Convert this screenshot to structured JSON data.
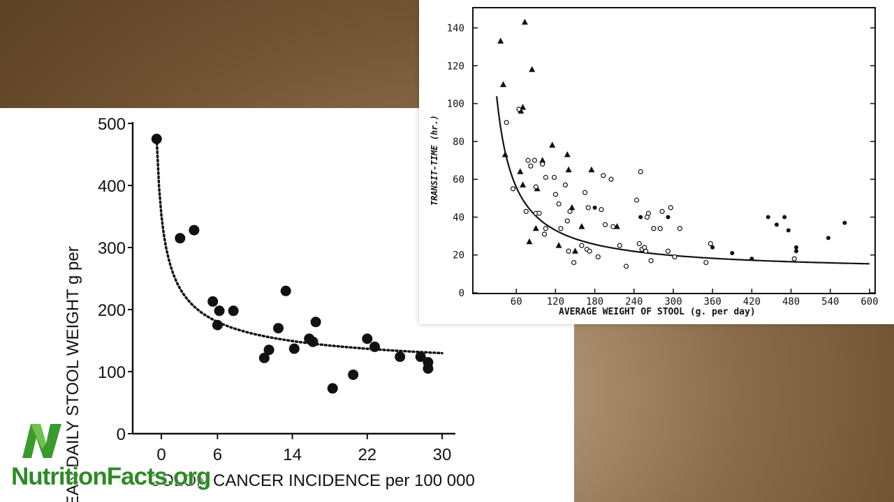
{
  "chart_data": [
    {
      "type": "scatter",
      "title": "",
      "xlabel": "COLON CANCER INCIDENCE per 100 000",
      "ylabel": "MEAN DAILY STOOL WEIGHT g per",
      "xlim": [
        -3,
        31
      ],
      "ylim": [
        0,
        500
      ],
      "xticks": [
        "0",
        "6",
        "14",
        "22",
        "30"
      ],
      "yticks": [
        "0",
        "100",
        "200",
        "300",
        "400",
        "500"
      ],
      "xtick_values": [
        0,
        6,
        14,
        22,
        30
      ],
      "ytick_values": [
        0,
        100,
        200,
        300,
        400,
        500
      ],
      "trend": "dotted decreasing curve",
      "points": [
        {
          "x": -0.5,
          "y": 475
        },
        {
          "x": 2.0,
          "y": 315
        },
        {
          "x": 3.5,
          "y": 328
        },
        {
          "x": 5.5,
          "y": 213
        },
        {
          "x": 6.0,
          "y": 175
        },
        {
          "x": 6.2,
          "y": 198
        },
        {
          "x": 7.7,
          "y": 198
        },
        {
          "x": 11.0,
          "y": 122
        },
        {
          "x": 11.5,
          "y": 135
        },
        {
          "x": 12.5,
          "y": 170
        },
        {
          "x": 13.3,
          "y": 230
        },
        {
          "x": 14.2,
          "y": 137
        },
        {
          "x": 15.8,
          "y": 153
        },
        {
          "x": 16.2,
          "y": 148
        },
        {
          "x": 16.5,
          "y": 180
        },
        {
          "x": 18.3,
          "y": 73
        },
        {
          "x": 20.5,
          "y": 95
        },
        {
          "x": 22.0,
          "y": 153
        },
        {
          "x": 22.8,
          "y": 140
        },
        {
          "x": 25.5,
          "y": 124
        },
        {
          "x": 27.7,
          "y": 124
        },
        {
          "x": 28.5,
          "y": 115
        },
        {
          "x": 28.5,
          "y": 105
        }
      ]
    },
    {
      "type": "scatter",
      "title": "",
      "xlabel": "AVERAGE WEIGHT OF STOOL (g. per day)",
      "ylabel": "TRANSIT-TIME (hr.)",
      "xlim": [
        0,
        600
      ],
      "ylim": [
        0,
        145
      ],
      "xticks": [
        "60",
        "120",
        "180",
        "240",
        "300",
        "360",
        "420",
        "480",
        "540",
        "600"
      ],
      "yticks": [
        "0",
        "20",
        "40",
        "60",
        "80",
        "100",
        "120",
        "140"
      ],
      "xtick_values": [
        60,
        120,
        180,
        240,
        300,
        360,
        420,
        480,
        540,
        600
      ],
      "ytick_values": [
        0,
        20,
        40,
        60,
        80,
        100,
        120,
        140
      ],
      "trend": "solid decreasing curve",
      "series": [
        {
          "marker": "triangle",
          "points": [
            [
              36,
              133
            ],
            [
              40,
              110
            ],
            [
              43,
              73
            ],
            [
              73,
              143
            ],
            [
              84,
              118
            ],
            [
              66,
              64
            ],
            [
              67,
              96
            ],
            [
              70,
              98
            ],
            [
              70,
              57
            ],
            [
              80,
              27
            ],
            [
              90,
              34
            ],
            [
              92,
              55
            ],
            [
              100,
              70
            ],
            [
              115,
              78
            ],
            [
              125,
              25
            ],
            [
              138,
              73
            ],
            [
              140,
              65
            ],
            [
              145,
              45
            ],
            [
              150,
              22
            ],
            [
              160,
              35
            ],
            [
              175,
              65
            ],
            [
              214,
              35
            ]
          ]
        },
        {
          "marker": "open-circle",
          "points": [
            [
              45,
              90
            ],
            [
              55,
              55
            ],
            [
              64,
              97
            ],
            [
              75,
              43
            ],
            [
              78,
              70
            ],
            [
              82,
              67
            ],
            [
              88,
              70
            ],
            [
              90,
              56
            ],
            [
              90,
              42
            ],
            [
              95,
              42
            ],
            [
              100,
              68
            ],
            [
              103,
              31
            ],
            [
              105,
              34
            ],
            [
              105,
              61
            ],
            [
              118,
              61
            ],
            [
              120,
              52
            ],
            [
              125,
              47
            ],
            [
              128,
              34
            ],
            [
              135,
              57
            ],
            [
              138,
              38
            ],
            [
              140,
              22
            ],
            [
              142,
              43
            ],
            [
              148,
              16
            ],
            [
              160,
              25
            ],
            [
              165,
              53
            ],
            [
              168,
              23
            ],
            [
              170,
              45
            ],
            [
              172,
              22
            ],
            [
              185,
              19
            ],
            [
              190,
              44
            ],
            [
              193,
              62
            ],
            [
              196,
              36
            ],
            [
              205,
              60
            ],
            [
              208,
              35
            ],
            [
              218,
              25
            ],
            [
              228,
              14
            ],
            [
              244,
              49
            ],
            [
              250,
              64
            ],
            [
              248,
              26
            ],
            [
              252,
              23
            ],
            [
              256,
              24
            ],
            [
              258,
              22
            ],
            [
              260,
              40
            ],
            [
              262,
              42
            ],
            [
              266,
              17
            ],
            [
              270,
              34
            ],
            [
              280,
              34
            ],
            [
              283,
              43
            ],
            [
              292,
              22
            ],
            [
              296,
              45
            ],
            [
              302,
              19
            ],
            [
              310,
              34
            ],
            [
              350,
              16
            ],
            [
              357,
              26
            ],
            [
              485,
              18
            ]
          ]
        },
        {
          "marker": "filled-circle",
          "points": [
            [
              180,
              45
            ],
            [
              250,
              40
            ],
            [
              292,
              40
            ],
            [
              360,
              24
            ],
            [
              390,
              21
            ],
            [
              420,
              18
            ],
            [
              445,
              40
            ],
            [
              458,
              36
            ],
            [
              470,
              40
            ],
            [
              476,
              33
            ],
            [
              488,
              24
            ],
            [
              488,
              22
            ],
            [
              537,
              29
            ],
            [
              562,
              37
            ]
          ]
        }
      ]
    }
  ],
  "logo": {
    "text": "NutritionFacts.org",
    "mark": "leaf-n-logo",
    "color": "#2e8a26"
  }
}
